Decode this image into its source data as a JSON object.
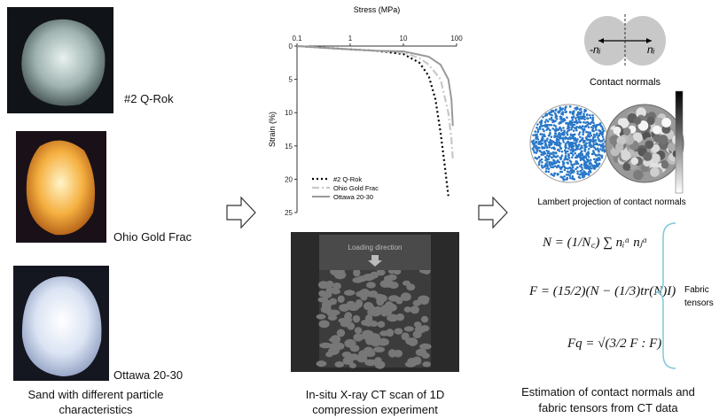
{
  "samples": [
    {
      "label": "#2 Q-Rok"
    },
    {
      "label": "Ohio Gold Frac"
    },
    {
      "label": "Ottawa 20-30"
    }
  ],
  "left_caption": [
    "Sand with different particle",
    "characteristics"
  ],
  "ct_scan": {
    "inner_label": "Loading direction",
    "caption": [
      "In-situ X-ray CT scan of 1D",
      "compression experiment"
    ]
  },
  "contact_normals": {
    "left_label": "-nᵢ",
    "right_label": "nᵢ",
    "caption": "Contact normals"
  },
  "lambert_caption": "Lambert projection of contact normals",
  "equations": [
    "N = (1/N꜀) ∑ nᵢᵅ nⱼᵅ",
    "F = (15/2)(N − (1/3)tr(N)I)",
    "Fq = √(3/2 F : F)"
  ],
  "brace_label": [
    "Fabric",
    "tensors"
  ],
  "right_caption": [
    "Estimation of contact normals and",
    "fabric tensors from CT data"
  ],
  "chart_data": {
    "type": "line",
    "x_label": "Stress (MPa)",
    "y_label": "Strain (%)",
    "xlog": true,
    "y_inverted": true,
    "xlim": [
      0.1,
      100
    ],
    "xticks": [
      0.1,
      1,
      10,
      100
    ],
    "ylim": [
      0,
      25
    ],
    "yticks": [
      0,
      5,
      10,
      15,
      20,
      25
    ],
    "series": [
      {
        "name": "#2 Q-Rok",
        "color": "#000000",
        "dash": "2,3",
        "width": 2.2,
        "x": [
          0.1,
          1,
          3,
          10,
          20,
          30,
          40,
          50,
          60,
          70
        ],
        "values": [
          0,
          0.5,
          0.7,
          1.2,
          2.5,
          4.5,
          8,
          13,
          18,
          22.5
        ]
      },
      {
        "name": "Ohio Gold Frac",
        "color": "#c8c8c8",
        "dash": "8,3,2,3",
        "width": 2.2,
        "x": [
          0.1,
          1,
          3,
          10,
          20,
          30,
          50,
          70,
          80,
          85
        ],
        "values": [
          0,
          0.5,
          0.7,
          1.0,
          1.8,
          2.8,
          5,
          10,
          14,
          17
        ]
      },
      {
        "name": "Ottawa 20-30",
        "color": "#999999",
        "dash": "",
        "width": 2,
        "x": [
          0.1,
          1,
          3,
          10,
          30,
          50,
          70,
          80,
          85
        ],
        "values": [
          0,
          0.5,
          0.7,
          0.8,
          1.6,
          2.8,
          5,
          8,
          12
        ]
      }
    ]
  }
}
